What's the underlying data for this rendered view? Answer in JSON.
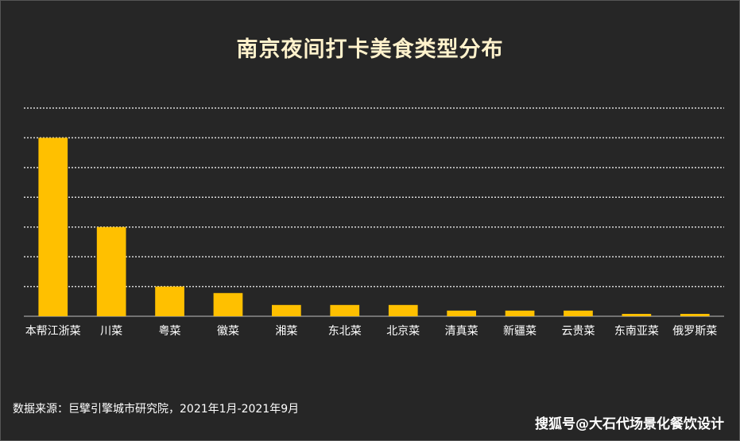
{
  "chart_data": {
    "type": "bar",
    "title": "南京夜间打卡美食类型分布",
    "categories": [
      "本帮江浙菜",
      "川菜",
      "粤菜",
      "徽菜",
      "湘菜",
      "东北菜",
      "北京菜",
      "清真菜",
      "新疆菜",
      "云贵菜",
      "东南亚菜",
      "俄罗斯菜"
    ],
    "values": [
      60,
      30,
      10,
      7.8,
      3.8,
      3.8,
      3.8,
      1.9,
      1.9,
      1.9,
      0.8,
      0.8
    ],
    "ylim": [
      0,
      70
    ],
    "grid": true,
    "bar_color": "#ffc000",
    "text_color": "#ffffff",
    "grid_color": "#d9d9d9"
  },
  "footer": {
    "source": "数据来源：巨擘引擎城市研究院，2021年1月-2021年9月",
    "watermark": "搜狐号@大石代场景化餐饮设计"
  }
}
